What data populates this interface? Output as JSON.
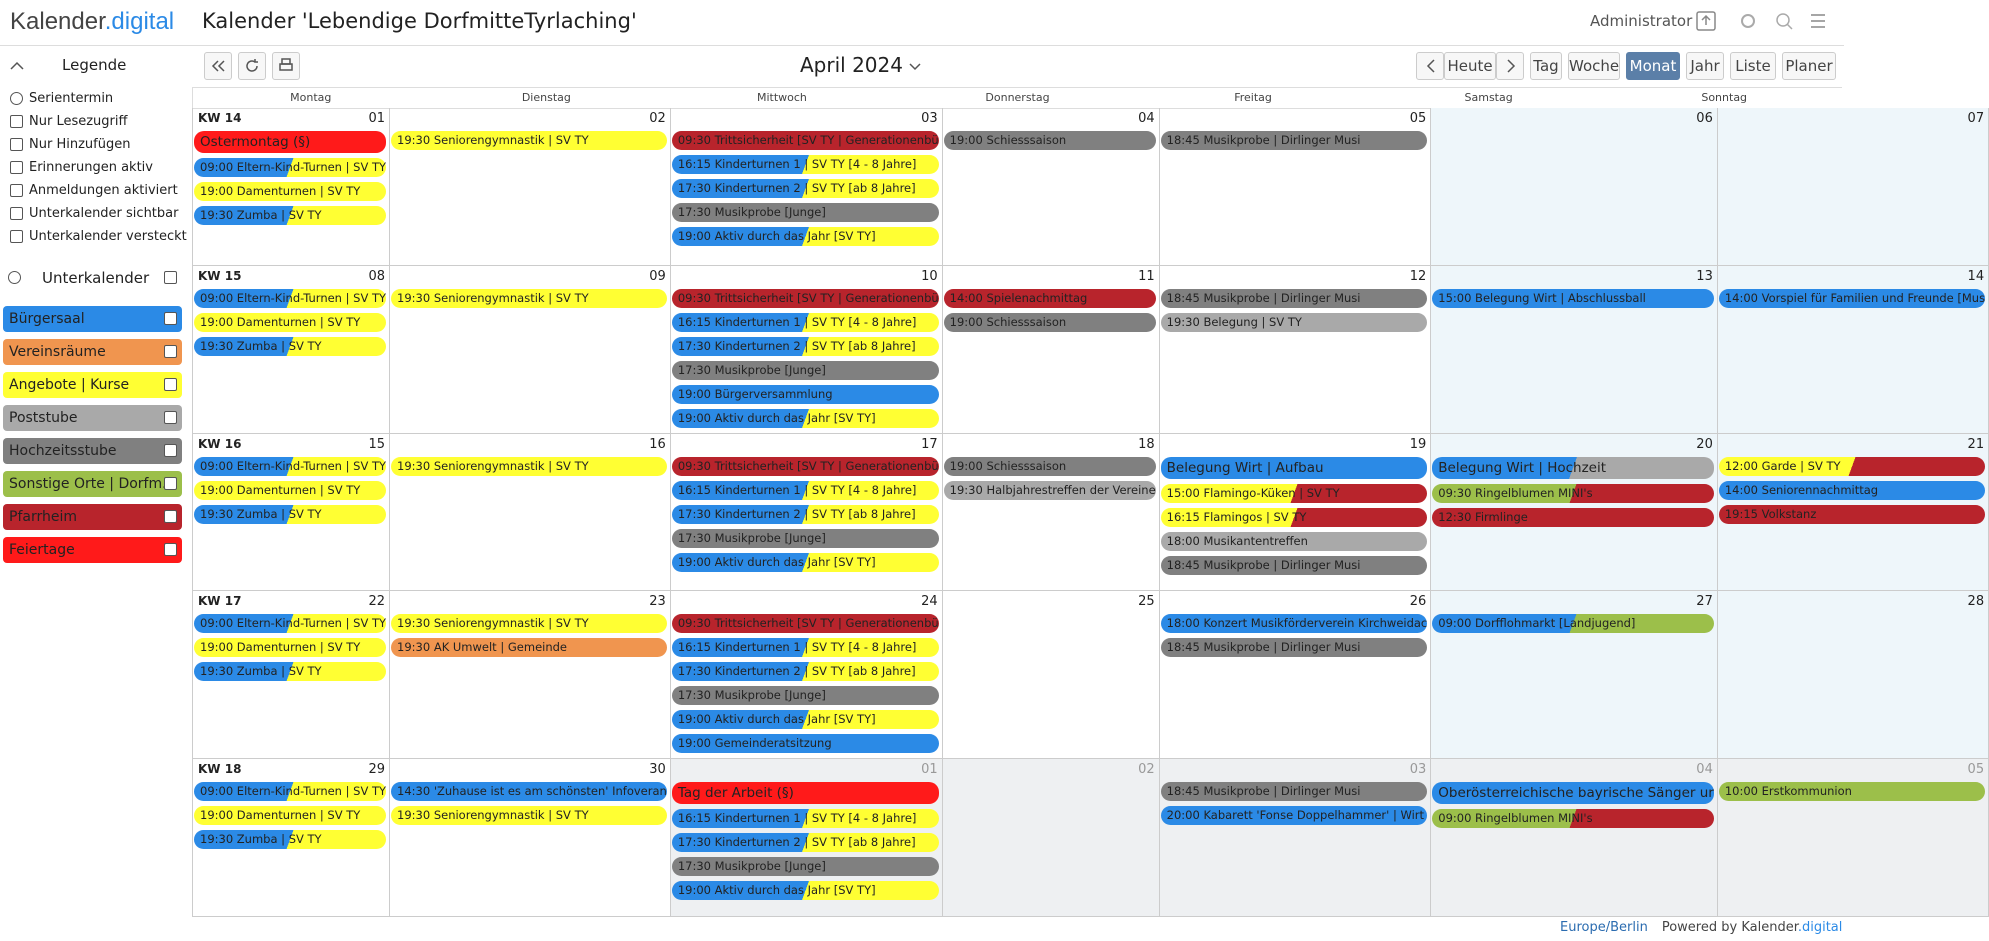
{
  "header": {
    "logo": "Kalender",
    "logo_accent": ".digital",
    "title": "Kalender 'Lebendige DorfmitteTyrlaching'",
    "user": "Administrator"
  },
  "sidebar": {
    "legend_title": "Legende",
    "legend": [
      "Serientermin",
      "Nur Lesezugriff",
      "Nur Hinzufügen",
      "Erinnerungen aktiv",
      "Anmeldungen aktiviert",
      "Unterkalender sichtbar",
      "Unterkalender versteckt"
    ],
    "subcalendars_title": "Unterkalender",
    "subcalendars": [
      {
        "name": "Bürgersaal",
        "color": "#2b8ae6"
      },
      {
        "name": "Vereinsräume",
        "color": "#f0954f"
      },
      {
        "name": "Angebote | Kurse",
        "color": "#ffff33"
      },
      {
        "name": "Poststube",
        "color": "#a9a9a9"
      },
      {
        "name": "Hochzeitsstube",
        "color": "#808080"
      },
      {
        "name": "Sonstige Orte | Dorfm...",
        "color": "#9cbf4a"
      },
      {
        "name": "Pfarrheim",
        "color": "#b8242c"
      },
      {
        "name": "Feiertage",
        "color": "#ff1a1a"
      }
    ]
  },
  "toolbar": {
    "month": "April 2024",
    "today": "Heute",
    "views": [
      "Tag",
      "Woche",
      "Monat",
      "Jahr",
      "Liste",
      "Planer"
    ],
    "active_view": "Monat"
  },
  "weekdays": [
    "Montag",
    "Dienstag",
    "Mittwoch",
    "Donnerstag",
    "Freitag",
    "Samstag",
    "Sonntag"
  ],
  "weeks": [
    {
      "label": "KW 14",
      "days": [
        {
          "date": "01",
          "events": [
            {
              "text": "Ostermontag (§)",
              "colors": [
                "#ff1a1a"
              ],
              "large": true
            },
            {
              "text": "09:00 Eltern-Kind-Turnen | SV TY",
              "colors": [
                "#2b8ae6",
                "#ffff33"
              ]
            },
            {
              "text": "19:00 Damenturnen | SV TY",
              "colors": [
                "#ffff33"
              ]
            },
            {
              "text": "19:30 Zumba | SV TY",
              "colors": [
                "#2b8ae6",
                "#ffff33"
              ]
            }
          ]
        },
        {
          "date": "02",
          "events": [
            {
              "text": "19:30 Seniorengymnastik | SV TY",
              "colors": [
                "#ffff33"
              ]
            }
          ]
        },
        {
          "date": "03",
          "events": [
            {
              "text": "09:30 Trittsicherheit [SV TY | Generationenbü",
              "colors": [
                "#b8242c"
              ]
            },
            {
              "text": "16:15 Kinderturnen 1 | SV TY [4 - 8 Jahre]",
              "colors": [
                "#2b8ae6",
                "#ffff33"
              ]
            },
            {
              "text": "17:30 Kinderturnen 2 | SV TY [ab 8 Jahre]",
              "colors": [
                "#2b8ae6",
                "#ffff33"
              ]
            },
            {
              "text": "17:30 Musikprobe [Junge]",
              "colors": [
                "#808080"
              ]
            },
            {
              "text": "19:00 Aktiv durch das Jahr [SV TY]",
              "colors": [
                "#2b8ae6",
                "#ffff33"
              ]
            }
          ]
        },
        {
          "date": "04",
          "events": [
            {
              "text": "19:00 Schiesssaison",
              "colors": [
                "#808080"
              ]
            }
          ]
        },
        {
          "date": "05",
          "events": [
            {
              "text": "18:45 Musikprobe | Dirlinger Musi",
              "colors": [
                "#808080"
              ]
            }
          ]
        },
        {
          "date": "06",
          "events": []
        },
        {
          "date": "07",
          "events": []
        }
      ]
    },
    {
      "label": "KW 15",
      "days": [
        {
          "date": "08",
          "events": [
            {
              "text": "09:00 Eltern-Kind-Turnen | SV TY",
              "colors": [
                "#2b8ae6",
                "#ffff33"
              ]
            },
            {
              "text": "19:00 Damenturnen | SV TY",
              "colors": [
                "#ffff33"
              ]
            },
            {
              "text": "19:30 Zumba | SV TY",
              "colors": [
                "#2b8ae6",
                "#ffff33"
              ]
            }
          ]
        },
        {
          "date": "09",
          "events": [
            {
              "text": "19:30 Seniorengymnastik | SV TY",
              "colors": [
                "#ffff33"
              ]
            }
          ]
        },
        {
          "date": "10",
          "events": [
            {
              "text": "09:30 Trittsicherheit [SV TY | Generationenbü",
              "colors": [
                "#b8242c"
              ]
            },
            {
              "text": "16:15 Kinderturnen 1 | SV TY [4 - 8 Jahre]",
              "colors": [
                "#2b8ae6",
                "#ffff33"
              ]
            },
            {
              "text": "17:30 Kinderturnen 2 | SV TY [ab 8 Jahre]",
              "colors": [
                "#2b8ae6",
                "#ffff33"
              ]
            },
            {
              "text": "17:30 Musikprobe [Junge]",
              "colors": [
                "#808080"
              ]
            },
            {
              "text": "19:00 Bürgerversammlung",
              "colors": [
                "#2b8ae6"
              ]
            },
            {
              "text": "19:00 Aktiv durch das Jahr [SV TY]",
              "colors": [
                "#2b8ae6",
                "#ffff33"
              ]
            }
          ]
        },
        {
          "date": "11",
          "events": [
            {
              "text": "14:00 Spielenachmittag",
              "colors": [
                "#b8242c"
              ]
            },
            {
              "text": "19:00 Schiesssaison",
              "colors": [
                "#808080"
              ]
            }
          ]
        },
        {
          "date": "12",
          "events": [
            {
              "text": "18:45 Musikprobe | Dirlinger Musi",
              "colors": [
                "#808080"
              ]
            },
            {
              "text": "19:30 Belegung | SV TY",
              "colors": [
                "#a9a9a9"
              ]
            }
          ]
        },
        {
          "date": "13",
          "events": [
            {
              "text": "15:00 Belegung Wirt | Abschlussball",
              "colors": [
                "#2b8ae6"
              ]
            }
          ]
        },
        {
          "date": "14",
          "events": [
            {
              "text": "14:00 Vorspiel für Familien und Freunde [Mus",
              "colors": [
                "#2b8ae6"
              ]
            }
          ]
        }
      ]
    },
    {
      "label": "KW 16",
      "days": [
        {
          "date": "15",
          "events": [
            {
              "text": "09:00 Eltern-Kind-Turnen | SV TY",
              "colors": [
                "#2b8ae6",
                "#ffff33"
              ]
            },
            {
              "text": "19:00 Damenturnen | SV TY",
              "colors": [
                "#ffff33"
              ]
            },
            {
              "text": "19:30 Zumba | SV TY",
              "colors": [
                "#2b8ae6",
                "#ffff33"
              ]
            }
          ]
        },
        {
          "date": "16",
          "events": [
            {
              "text": "19:30 Seniorengymnastik | SV TY",
              "colors": [
                "#ffff33"
              ]
            }
          ]
        },
        {
          "date": "17",
          "events": [
            {
              "text": "09:30 Trittsicherheit [SV TY | Generationenbü",
              "colors": [
                "#b8242c"
              ]
            },
            {
              "text": "16:15 Kinderturnen 1 | SV TY [4 - 8 Jahre]",
              "colors": [
                "#2b8ae6",
                "#ffff33"
              ]
            },
            {
              "text": "17:30 Kinderturnen 2 | SV TY [ab 8 Jahre]",
              "colors": [
                "#2b8ae6",
                "#ffff33"
              ]
            },
            {
              "text": "17:30 Musikprobe [Junge]",
              "colors": [
                "#808080"
              ]
            },
            {
              "text": "19:00 Aktiv durch das Jahr [SV TY]",
              "colors": [
                "#2b8ae6",
                "#ffff33"
              ]
            }
          ]
        },
        {
          "date": "18",
          "events": [
            {
              "text": "19:00 Schiesssaison",
              "colors": [
                "#808080"
              ]
            },
            {
              "text": "19:30 Halbjahrestreffen der Vereine",
              "colors": [
                "#a9a9a9"
              ]
            }
          ]
        },
        {
          "date": "19",
          "events": [
            {
              "text": "Belegung Wirt | Aufbau",
              "colors": [
                "#2b8ae6"
              ],
              "large": true
            },
            {
              "text": "15:00 Flamingo-Küken | SV TY",
              "colors": [
                "#ffff33",
                "#b8242c"
              ]
            },
            {
              "text": "16:15 Flamingos | SV TY",
              "colors": [
                "#ffff33",
                "#b8242c"
              ]
            },
            {
              "text": "18:00 Musikantentreffen",
              "colors": [
                "#a9a9a9"
              ]
            },
            {
              "text": "18:45 Musikprobe | Dirlinger Musi",
              "colors": [
                "#808080"
              ]
            }
          ]
        },
        {
          "date": "20",
          "events": [
            {
              "text": "Belegung Wirt | Hochzeit",
              "colors": [
                "#2b8ae6",
                "#a9a9a9"
              ],
              "large": true
            },
            {
              "text": "09:30 Ringelblumen MINI's",
              "colors": [
                "#9cbf4a",
                "#b8242c"
              ]
            },
            {
              "text": "12:30 Firmlinge",
              "colors": [
                "#b8242c"
              ]
            }
          ]
        },
        {
          "date": "21",
          "events": [
            {
              "text": "12:00 Garde | SV TY",
              "colors": [
                "#ffff33",
                "#b8242c"
              ]
            },
            {
              "text": "14:00 Seniorennachmittag",
              "colors": [
                "#2b8ae6"
              ]
            },
            {
              "text": "19:15 Volkstanz",
              "colors": [
                "#b8242c"
              ]
            }
          ]
        }
      ]
    },
    {
      "label": "KW 17",
      "days": [
        {
          "date": "22",
          "events": [
            {
              "text": "09:00 Eltern-Kind-Turnen | SV TY",
              "colors": [
                "#2b8ae6",
                "#ffff33"
              ]
            },
            {
              "text": "19:00 Damenturnen | SV TY",
              "colors": [
                "#ffff33"
              ]
            },
            {
              "text": "19:30 Zumba | SV TY",
              "colors": [
                "#2b8ae6",
                "#ffff33"
              ]
            }
          ]
        },
        {
          "date": "23",
          "events": [
            {
              "text": "19:30 Seniorengymnastik | SV TY",
              "colors": [
                "#ffff33"
              ]
            },
            {
              "text": "19:30 AK Umwelt | Gemeinde",
              "colors": [
                "#f0954f"
              ]
            }
          ]
        },
        {
          "date": "24",
          "events": [
            {
              "text": "09:30 Trittsicherheit [SV TY | Generationenbü",
              "colors": [
                "#b8242c"
              ]
            },
            {
              "text": "16:15 Kinderturnen 1 | SV TY [4 - 8 Jahre]",
              "colors": [
                "#2b8ae6",
                "#ffff33"
              ]
            },
            {
              "text": "17:30 Kinderturnen 2 | SV TY [ab 8 Jahre]",
              "colors": [
                "#2b8ae6",
                "#ffff33"
              ]
            },
            {
              "text": "17:30 Musikprobe [Junge]",
              "colors": [
                "#808080"
              ]
            },
            {
              "text": "19:00 Aktiv durch das Jahr [SV TY]",
              "colors": [
                "#2b8ae6",
                "#ffff33"
              ]
            },
            {
              "text": "19:00 Gemeinderatsitzung",
              "colors": [
                "#2b8ae6"
              ]
            }
          ]
        },
        {
          "date": "25",
          "events": []
        },
        {
          "date": "26",
          "events": [
            {
              "text": "18:00 Konzert Musikförderverein Kirchweidac",
              "colors": [
                "#2b8ae6"
              ]
            },
            {
              "text": "18:45 Musikprobe | Dirlinger Musi",
              "colors": [
                "#808080"
              ]
            }
          ]
        },
        {
          "date": "27",
          "events": [
            {
              "text": "09:00 Dorfflohmarkt [Landjugend]",
              "colors": [
                "#2b8ae6",
                "#9cbf4a"
              ]
            }
          ]
        },
        {
          "date": "28",
          "events": []
        }
      ]
    },
    {
      "label": "KW 18",
      "days": [
        {
          "date": "29",
          "events": [
            {
              "text": "09:00 Eltern-Kind-Turnen | SV TY",
              "colors": [
                "#2b8ae6",
                "#ffff33"
              ]
            },
            {
              "text": "19:00 Damenturnen | SV TY",
              "colors": [
                "#ffff33"
              ]
            },
            {
              "text": "19:30 Zumba | SV TY",
              "colors": [
                "#2b8ae6",
                "#ffff33"
              ]
            }
          ]
        },
        {
          "date": "30",
          "events": [
            {
              "text": "14:30 'Zuhause ist es am schönsten' Infoveran",
              "colors": [
                "#2b8ae6"
              ]
            },
            {
              "text": "19:30 Seniorengymnastik | SV TY",
              "colors": [
                "#ffff33"
              ]
            }
          ]
        },
        {
          "date": "01",
          "other_month": true,
          "events": [
            {
              "text": "Tag der Arbeit (§)",
              "colors": [
                "#ff1a1a"
              ],
              "large": true
            },
            {
              "text": "16:15 Kinderturnen 1 | SV TY [4 - 8 Jahre]",
              "colors": [
                "#2b8ae6",
                "#ffff33"
              ]
            },
            {
              "text": "17:30 Kinderturnen 2 | SV TY [ab 8 Jahre]",
              "colors": [
                "#2b8ae6",
                "#ffff33"
              ]
            },
            {
              "text": "17:30 Musikprobe [Junge]",
              "colors": [
                "#808080"
              ]
            },
            {
              "text": "19:00 Aktiv durch das Jahr [SV TY]",
              "colors": [
                "#2b8ae6",
                "#ffff33"
              ]
            }
          ]
        },
        {
          "date": "02",
          "other_month": true,
          "events": []
        },
        {
          "date": "03",
          "other_month": true,
          "events": [
            {
              "text": "18:45 Musikprobe | Dirlinger Musi",
              "colors": [
                "#808080"
              ]
            },
            {
              "text": "20:00 Kabarett 'Fonse Doppelhammer' | Wirt",
              "colors": [
                "#2b8ae6"
              ]
            }
          ]
        },
        {
          "date": "04",
          "other_month": true,
          "events": [
            {
              "text": "Oberösterreichische bayrische Sänger ur",
              "colors": [
                "#2b8ae6"
              ],
              "large": true
            },
            {
              "text": "09:00 Ringelblumen MINI's",
              "colors": [
                "#9cbf4a",
                "#b8242c"
              ]
            }
          ]
        },
        {
          "date": "05",
          "other_month": true,
          "events": [
            {
              "text": "10:00 Erstkommunion",
              "colors": [
                "#9cbf4a"
              ]
            }
          ]
        }
      ]
    }
  ],
  "footer": {
    "timezone": "Europe/Berlin",
    "powered": "Powered by",
    "brand": "Kalender",
    "brand_accent": ".digital"
  }
}
